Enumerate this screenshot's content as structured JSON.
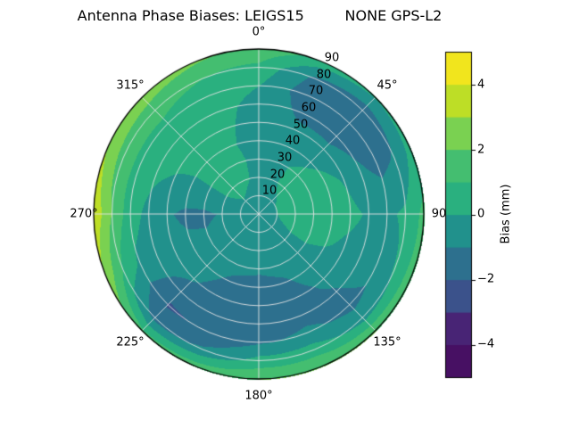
{
  "chart_data": {
    "type": "heatmap",
    "projection": "polar",
    "title": "Antenna Phase Biases: LEIGS15         NONE GPS-L2",
    "angular_axis": {
      "direction": "clockwise",
      "zero_location": "top",
      "tick_angles_deg": [
        0,
        45,
        90,
        135,
        180,
        225,
        270,
        315
      ],
      "tick_labels": [
        "0°",
        "45°",
        "90",
        "135°",
        "180°",
        "225°",
        "270°",
        "315°"
      ]
    },
    "radial_axis": {
      "max": 90,
      "tick_values": [
        10,
        20,
        30,
        40,
        50,
        60,
        70,
        80,
        90
      ],
      "tick_labels": [
        "10",
        "20",
        "30",
        "40",
        "50",
        "60",
        "70",
        "80",
        "90"
      ],
      "label_angle_deg": 25
    },
    "colorbar": {
      "label": "Bias (mm)",
      "min": -5,
      "max": 5,
      "level_step": 1,
      "tick_values": [
        4,
        2,
        0,
        -2,
        -4
      ],
      "tick_labels": [
        "4",
        "2",
        "0",
        "−2",
        "−4"
      ],
      "band_colors": [
        "#471063",
        "#482475",
        "#3b528b",
        "#2d708e",
        "#21918c",
        "#2ab07f",
        "#44be70",
        "#7ad151",
        "#bdde26",
        "#f1e51d"
      ],
      "colormap": "viridis"
    },
    "grid": {
      "azimuth_deg": [
        0,
        22.5,
        45,
        67.5,
        90,
        112.5,
        135,
        157.5,
        180,
        202.5,
        225,
        247.5,
        270,
        292.5,
        315,
        337.5
      ],
      "zenith_deg": [
        0,
        10,
        20,
        30,
        40,
        50,
        60,
        70,
        80,
        90
      ],
      "values_mm": [
        [
          -0.2,
          -0.2,
          -0.2,
          -0.2,
          -0.2,
          -0.2,
          -0.2,
          -0.2,
          -0.2,
          -0.2,
          -0.2,
          -0.2,
          -0.2,
          -0.2,
          -0.2,
          -0.2
        ],
        [
          -0.2,
          -0.2,
          -0.1,
          0.0,
          0.0,
          -0.1,
          -0.2,
          -0.3,
          -0.3,
          -0.3,
          -0.3,
          -0.4,
          -0.5,
          -0.3,
          -0.1,
          -0.2
        ],
        [
          -0.2,
          -0.1,
          0.2,
          0.6,
          0.5,
          0.1,
          -0.2,
          -0.4,
          -0.5,
          -0.5,
          -0.4,
          -0.7,
          -0.9,
          -0.2,
          0.5,
          0.1
        ],
        [
          -0.3,
          -0.2,
          0.3,
          0.7,
          0.6,
          0.2,
          -0.3,
          -0.7,
          -0.8,
          -0.7,
          -0.5,
          -0.9,
          -1.2,
          -0.3,
          0.6,
          0.2
        ],
        [
          -0.4,
          -0.5,
          -0.2,
          0.4,
          0.4,
          0.1,
          -0.5,
          -1.1,
          -1.5,
          -1.2,
          -0.6,
          -0.8,
          -1.2,
          -0.3,
          0.5,
          0.1
        ],
        [
          -0.4,
          -0.8,
          -0.7,
          -0.1,
          0.2,
          -0.2,
          -0.8,
          -1.4,
          -1.9,
          -1.6,
          -0.9,
          -0.6,
          -0.9,
          -0.1,
          0.5,
          0.2
        ],
        [
          -0.3,
          -1.2,
          -1.4,
          -0.8,
          -0.1,
          -0.4,
          -1.1,
          -1.3,
          -1.7,
          -1.8,
          -1.5,
          -0.4,
          -0.3,
          0.2,
          0.6,
          0.3
        ],
        [
          0.0,
          -1.6,
          -1.9,
          -1.3,
          -0.2,
          -0.7,
          -1.3,
          -0.8,
          -1.1,
          -1.9,
          -2.1,
          -0.2,
          0.4,
          0.7,
          0.8,
          0.5
        ],
        [
          0.7,
          -1.2,
          -1.6,
          -0.9,
          0.2,
          0.1,
          -0.4,
          0.5,
          0.4,
          -0.8,
          -1.4,
          0.9,
          1.9,
          1.5,
          1.3,
          1.0
        ],
        [
          1.8,
          0.6,
          0.1,
          0.4,
          1.3,
          1.6,
          2.0,
          2.0,
          2.0,
          1.6,
          1.2,
          2.8,
          3.8,
          3.0,
          2.6,
          2.1
        ]
      ]
    }
  }
}
